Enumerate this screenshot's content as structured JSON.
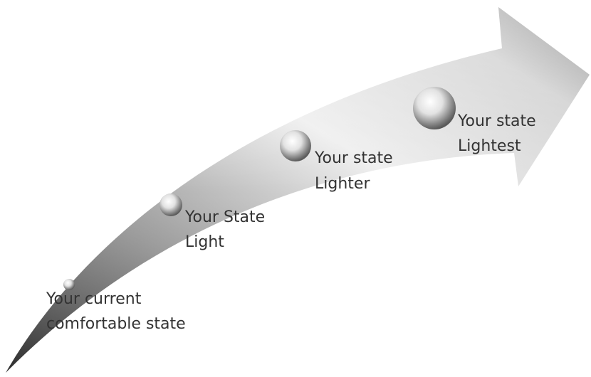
{
  "nodes": [
    {
      "lines": [
        "Your current",
        "comfortable state"
      ]
    },
    {
      "lines": [
        "Your State",
        "Light"
      ]
    },
    {
      "lines": [
        "Your state",
        "Lighter"
      ]
    },
    {
      "lines": [
        "Your state",
        "Lightest"
      ]
    }
  ]
}
